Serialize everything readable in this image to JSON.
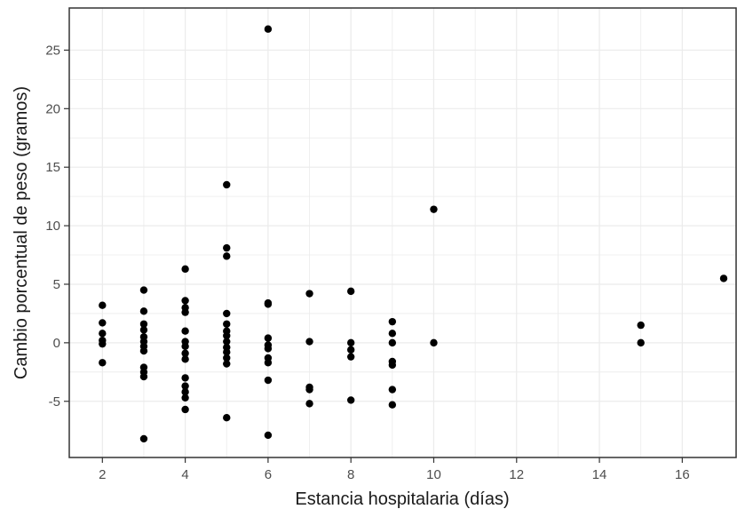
{
  "chart_data": {
    "type": "scatter",
    "title": "",
    "xlabel": "Estancia hospitalaria (días)",
    "ylabel": "Cambio porcentual de peso (gramos)",
    "xlim": [
      1.2,
      17.3
    ],
    "ylim": [
      -9.8,
      28.6
    ],
    "x_ticks": [
      2,
      4,
      6,
      8,
      10,
      12,
      14,
      16
    ],
    "y_ticks": [
      -5,
      0,
      5,
      10,
      15,
      20,
      25
    ],
    "x_tick_labels": [
      "2",
      "4",
      "6",
      "8",
      "10",
      "12",
      "14",
      "16"
    ],
    "y_tick_labels": [
      "-5",
      "0",
      "5",
      "10",
      "15",
      "20",
      "25"
    ],
    "grid": true,
    "point_color": "#000000",
    "grid_color": "#ebebeb",
    "panel_border_color": "#333333",
    "points": [
      {
        "x": 2,
        "y": 3.2
      },
      {
        "x": 2,
        "y": 1.7
      },
      {
        "x": 2,
        "y": 0.8
      },
      {
        "x": 2,
        "y": 0.2
      },
      {
        "x": 2,
        "y": -0.1
      },
      {
        "x": 2,
        "y": -1.7
      },
      {
        "x": 3,
        "y": 4.5
      },
      {
        "x": 3,
        "y": 2.7
      },
      {
        "x": 3,
        "y": 1.6
      },
      {
        "x": 3,
        "y": 1.1
      },
      {
        "x": 3,
        "y": 0.5
      },
      {
        "x": 3,
        "y": 0.1
      },
      {
        "x": 3,
        "y": -0.3
      },
      {
        "x": 3,
        "y": -0.7
      },
      {
        "x": 3,
        "y": -2.1
      },
      {
        "x": 3,
        "y": -2.5
      },
      {
        "x": 3,
        "y": -2.9
      },
      {
        "x": 3,
        "y": -8.2
      },
      {
        "x": 4,
        "y": 6.3
      },
      {
        "x": 4,
        "y": 3.6
      },
      {
        "x": 4,
        "y": 3.0
      },
      {
        "x": 4,
        "y": 2.6
      },
      {
        "x": 4,
        "y": 1.0
      },
      {
        "x": 4,
        "y": 0.1
      },
      {
        "x": 4,
        "y": -0.3
      },
      {
        "x": 4,
        "y": -0.9
      },
      {
        "x": 4,
        "y": -1.4
      },
      {
        "x": 4,
        "y": -3.0
      },
      {
        "x": 4,
        "y": -3.7
      },
      {
        "x": 4,
        "y": -4.2
      },
      {
        "x": 4,
        "y": -4.7
      },
      {
        "x": 4,
        "y": -5.7
      },
      {
        "x": 5,
        "y": 13.5
      },
      {
        "x": 5,
        "y": 8.1
      },
      {
        "x": 5,
        "y": 7.4
      },
      {
        "x": 5,
        "y": 2.5
      },
      {
        "x": 5,
        "y": 1.6
      },
      {
        "x": 5,
        "y": 1.0
      },
      {
        "x": 5,
        "y": 0.6
      },
      {
        "x": 5,
        "y": 0.1
      },
      {
        "x": 5,
        "y": -0.4
      },
      {
        "x": 5,
        "y": -0.8
      },
      {
        "x": 5,
        "y": -1.3
      },
      {
        "x": 5,
        "y": -1.8
      },
      {
        "x": 5,
        "y": -6.4
      },
      {
        "x": 6,
        "y": 26.8
      },
      {
        "x": 6,
        "y": 3.4
      },
      {
        "x": 6,
        "y": 3.3
      },
      {
        "x": 6,
        "y": 0.4
      },
      {
        "x": 6,
        "y": -0.2
      },
      {
        "x": 6,
        "y": -0.5
      },
      {
        "x": 6,
        "y": -1.3
      },
      {
        "x": 6,
        "y": -1.7
      },
      {
        "x": 6,
        "y": -3.2
      },
      {
        "x": 6,
        "y": -7.9
      },
      {
        "x": 7,
        "y": 4.2
      },
      {
        "x": 7,
        "y": 0.1
      },
      {
        "x": 7,
        "y": -3.8
      },
      {
        "x": 7,
        "y": -4.0
      },
      {
        "x": 7,
        "y": -5.2
      },
      {
        "x": 8,
        "y": 4.4
      },
      {
        "x": 8,
        "y": 0.0
      },
      {
        "x": 8,
        "y": -0.6
      },
      {
        "x": 8,
        "y": -1.2
      },
      {
        "x": 8,
        "y": -4.9
      },
      {
        "x": 9,
        "y": 1.8
      },
      {
        "x": 9,
        "y": 0.8
      },
      {
        "x": 9,
        "y": 0.0
      },
      {
        "x": 9,
        "y": -1.6
      },
      {
        "x": 9,
        "y": -1.9
      },
      {
        "x": 9,
        "y": -4.0
      },
      {
        "x": 9,
        "y": -5.3
      },
      {
        "x": 10,
        "y": 11.4
      },
      {
        "x": 10,
        "y": 0.0
      },
      {
        "x": 15,
        "y": 1.5
      },
      {
        "x": 15,
        "y": 0.0
      },
      {
        "x": 17,
        "y": 5.5
      }
    ]
  }
}
